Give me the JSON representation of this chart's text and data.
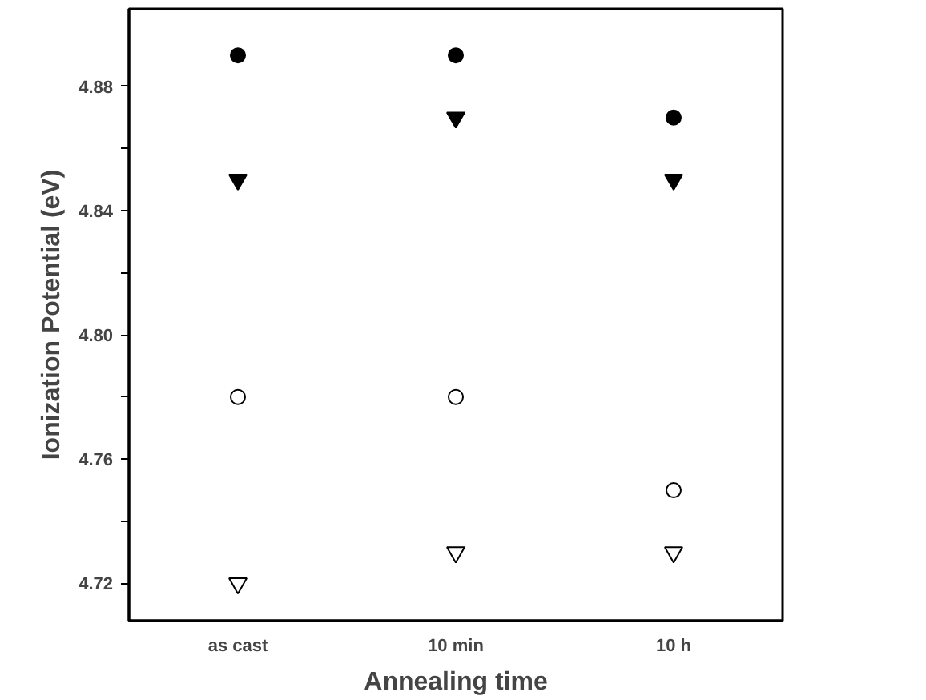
{
  "chart_data": {
    "type": "scatter",
    "xlabel": "Annealing time",
    "ylabel": "Ionization Potential (eV)",
    "categories": [
      "as cast",
      "10 min",
      "10 h"
    ],
    "series": [
      {
        "color": "#000000",
        "marker": "circle",
        "values": [
          4.89,
          4.89,
          4.87
        ]
      },
      {
        "color": "#000000",
        "marker": "triangle",
        "values": [
          4.85,
          4.87,
          4.85
        ]
      },
      {
        "color": "#ffffff",
        "marker": "circle",
        "values": [
          4.78,
          4.78,
          4.75
        ]
      },
      {
        "color": "#ffffff",
        "marker": "triangle",
        "values": [
          4.72,
          4.73,
          4.73
        ]
      }
    ],
    "ylim": [
      4.708,
      4.905
    ],
    "yticks": [
      4.72,
      {
        "value": 4.74,
        "label": null
      },
      4.76,
      {
        "value": 4.78,
        "label": null
      },
      {
        "value": 4.8,
        "label": "4.80"
      },
      {
        "value": 4.82,
        "label": null
      },
      4.84,
      {
        "value": 4.86,
        "label": null
      },
      4.88
    ],
    "grid": false
  }
}
